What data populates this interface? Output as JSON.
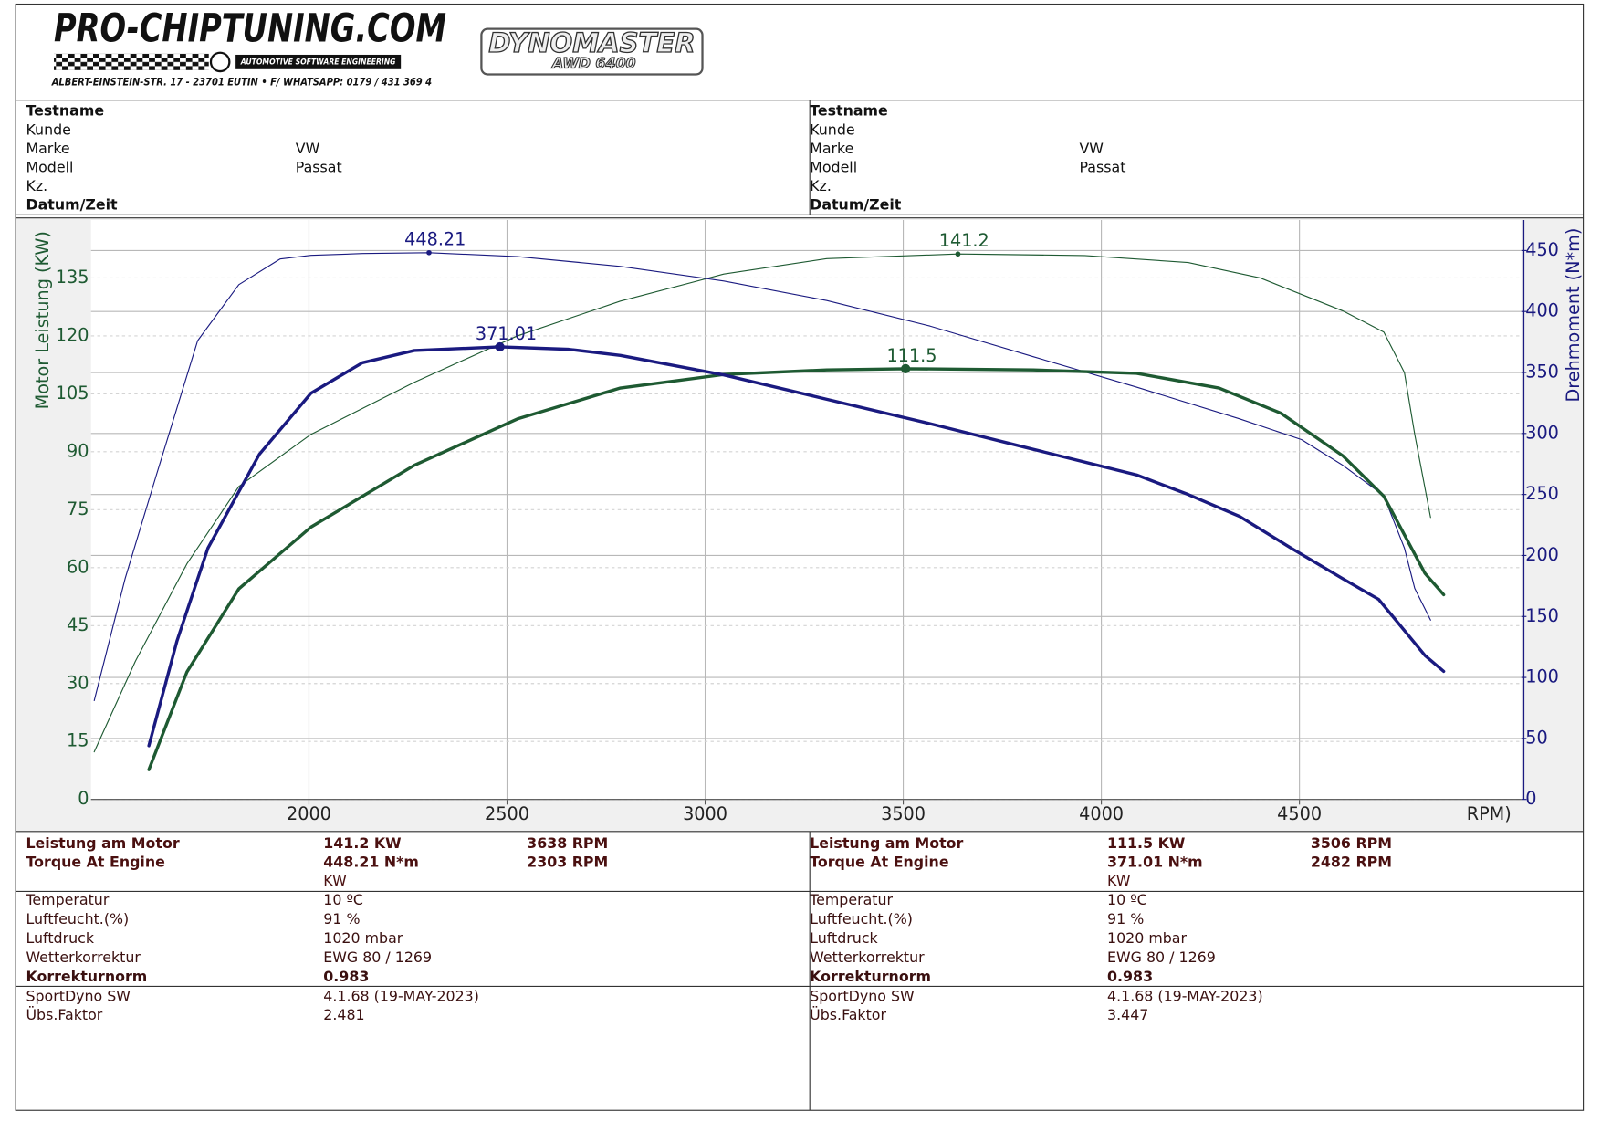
{
  "header": {
    "logo": "PRO-CHIPTUNING.COM",
    "tagline": "AUTOMOTIVE SOFTWARE ENGINEERING",
    "address": "ALBERT-EINSTEIN-STR. 17 - 23701 EUTIN • F/ WHATSAPP: 0179 / 431 369 4",
    "dyno": "DYNOMASTER",
    "dyno_model": "AWD 6400"
  },
  "info": [
    {
      "rows": [
        {
          "label": "Testname",
          "bold": true
        },
        {
          "label": "Kunde"
        },
        {
          "label": "Marke",
          "value": "VW"
        },
        {
          "label": "Modell",
          "value": "Passat"
        },
        {
          "label": "Kz."
        },
        {
          "label": "Datum/Zeit",
          "bold": true
        }
      ]
    },
    {
      "rows": [
        {
          "label": "Testname",
          "bold": true
        },
        {
          "label": "Kunde"
        },
        {
          "label": "Marke",
          "value": "VW"
        },
        {
          "label": "Modell",
          "value": "Passat"
        },
        {
          "label": "Kz."
        },
        {
          "label": "Datum/Zeit",
          "bold": true
        }
      ]
    }
  ],
  "chart_data": {
    "type": "line",
    "xlabel": "RPM)",
    "ylabel": "Motor Leistung (KW)",
    "y2label": "Drehmoment (N*m)",
    "y_color": "#1e5a32",
    "y2_color": "#1a1a80",
    "xlim": [
      1450,
      5060
    ],
    "xticks": [
      2000,
      2500,
      3000,
      3500,
      4000,
      4500
    ],
    "ylim": [
      0,
      150
    ],
    "yticks": [
      0,
      15,
      30,
      45,
      60,
      75,
      90,
      105,
      120,
      135
    ],
    "y2lim": [
      0,
      475
    ],
    "y2ticks": [
      0,
      50,
      100,
      150,
      200,
      250,
      300,
      350,
      400,
      450
    ],
    "grid": true,
    "series": [
      {
        "color": "#1e5a32",
        "line_width": 1,
        "axis": "y",
        "x": [
          1458,
          1562,
          1692,
          1823,
          2005,
          2266,
          2526,
          2786,
          3047,
          3307,
          3638,
          3958,
          4219,
          4401,
          4609,
          4713,
          4765,
          4791,
          4831
        ],
        "values": [
          12.3,
          35.8,
          61,
          81,
          94.5,
          108,
          120,
          129,
          136,
          140,
          141.2,
          140.8,
          139,
          135,
          126.5,
          121,
          110.5,
          94.5,
          73
        ],
        "peak": {
          "x": 3638,
          "y": 141.2
        }
      },
      {
        "color": "#1a1a80",
        "line_width": 1,
        "axis": "y2",
        "x": [
          1458,
          1536,
          1615,
          1719,
          1823,
          1927,
          2005,
          2135,
          2303,
          2526,
          2786,
          3047,
          3307,
          3568,
          3828,
          4089,
          4349,
          4505,
          4609,
          4713,
          4765,
          4791,
          4831
        ],
        "values": [
          81,
          181,
          266,
          376,
          422,
          443,
          446,
          447.5,
          448.21,
          445,
          437,
          425,
          409,
          388,
          363,
          338,
          312,
          295,
          274,
          249,
          206,
          173,
          147
        ],
        "peak": {
          "x": 2303,
          "y": 448.21
        }
      },
      {
        "color": "#1e5a32",
        "line_width": 3,
        "axis": "y",
        "x": [
          1596,
          1692,
          1823,
          2005,
          2266,
          2526,
          2786,
          3047,
          3307,
          3506,
          3828,
          4089,
          4297,
          4453,
          4609,
          4713,
          4817,
          4864
        ],
        "values": [
          7.7,
          33,
          54.5,
          70.5,
          86.5,
          98.5,
          106.5,
          110,
          111.2,
          111.5,
          111.2,
          110.3,
          106.5,
          100,
          89,
          78.5,
          58.5,
          53
        ],
        "peak": {
          "x": 3506,
          "y": 111.5
        }
      },
      {
        "color": "#1a1a80",
        "line_width": 3,
        "axis": "y2",
        "x": [
          1596,
          1667,
          1745,
          1875,
          2005,
          2135,
          2266,
          2482,
          2656,
          2786,
          3047,
          3307,
          3568,
          3828,
          4089,
          4219,
          4349,
          4479,
          4609,
          4700,
          4817,
          4864
        ],
        "values": [
          44,
          130,
          206,
          283,
          333,
          358,
          368,
          371.01,
          369,
          364,
          348,
          328,
          308,
          287,
          266,
          250,
          232,
          206,
          181,
          164,
          118,
          105
        ],
        "peak": {
          "x": 2482,
          "y": 371.01
        }
      }
    ]
  },
  "results": [
    {
      "rows": [
        {
          "label": "Leistung am Motor",
          "value": "141.2 KW",
          "rpm": "3638 RPM",
          "bold": true
        },
        {
          "label": "Torque At Engine",
          "value": "448.21 N*m",
          "rpm": "2303 RPM",
          "bold": true
        },
        {
          "value": "KW"
        }
      ]
    },
    {
      "rows": [
        {
          "label": "Leistung am Motor",
          "value": "111.5 KW",
          "rpm": "3506 RPM",
          "bold": true
        },
        {
          "label": "Torque At Engine",
          "value": "371.01 N*m",
          "rpm": "2482 RPM",
          "bold": true
        },
        {
          "value": "KW"
        }
      ]
    }
  ],
  "conditions": [
    {
      "rows": [
        {
          "label": "Temperatur",
          "value": "10 ºC"
        },
        {
          "label": "Luftfeucht.(%)",
          "value": "91 %"
        },
        {
          "label": "Luftdruck",
          "value": "1020 mbar"
        },
        {
          "label": "Wetterkorrektur",
          "value": "EWG 80 / 1269"
        },
        {
          "label": "Korrekturnorm",
          "value": "0.983",
          "bold": true
        }
      ]
    },
    {
      "rows": [
        {
          "label": "Temperatur",
          "value": "10 ºC"
        },
        {
          "label": "Luftfeucht.(%)",
          "value": "91 %"
        },
        {
          "label": "Luftdruck",
          "value": "1020 mbar"
        },
        {
          "label": "Wetterkorrektur",
          "value": "EWG 80 / 1269"
        },
        {
          "label": "Korrekturnorm",
          "value": "0.983",
          "bold": true
        }
      ]
    }
  ],
  "software": [
    {
      "rows": [
        {
          "label": "SportDyno SW",
          "value": "4.1.68 (19-MAY-2023)"
        },
        {
          "label": "Übs.Faktor",
          "value": "2.481"
        }
      ]
    },
    {
      "rows": [
        {
          "label": "SportDyno SW",
          "value": "4.1.68 (19-MAY-2023)"
        },
        {
          "label": "Übs.Faktor",
          "value": "3.447"
        }
      ]
    }
  ]
}
